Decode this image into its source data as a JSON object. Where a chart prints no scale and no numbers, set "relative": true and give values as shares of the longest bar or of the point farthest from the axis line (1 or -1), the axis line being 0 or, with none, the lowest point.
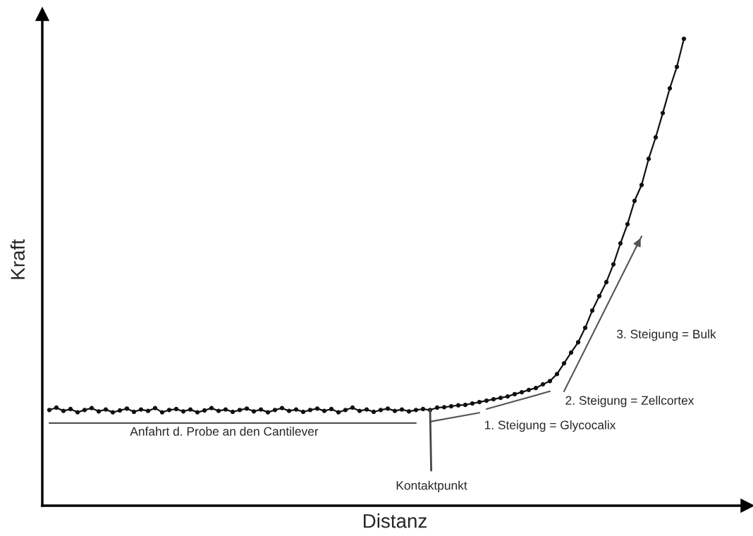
{
  "chart_data": {
    "type": "line",
    "relative": true,
    "xlabel": "Distanz",
    "ylabel": "Kraft",
    "tick_labels": false,
    "legend": false,
    "categories": [
      null,
      null,
      null,
      null,
      null,
      null,
      null,
      null,
      null,
      null,
      null,
      null,
      null,
      null,
      null,
      null,
      null,
      null,
      null,
      null,
      null,
      null,
      null,
      null,
      null,
      null,
      null,
      null,
      null,
      null,
      null,
      null,
      null,
      null,
      null,
      null,
      null,
      null,
      null,
      null,
      null,
      null,
      null,
      null,
      null,
      null,
      null,
      null,
      null,
      null,
      null,
      null,
      null,
      null,
      null,
      null,
      null,
      null,
      null,
      null,
      null,
      null,
      null,
      null,
      null,
      null,
      null,
      null,
      null,
      null,
      null,
      null,
      null,
      null,
      null,
      null,
      null,
      null,
      null,
      null,
      null,
      null,
      null,
      null,
      null,
      null,
      null,
      null,
      null,
      null,
      null
    ],
    "series": [
      {
        "marker": "circle",
        "color": "#111111",
        "values": [
          0.205,
          0.21,
          0.203,
          0.207,
          0.2,
          0.205,
          0.209,
          0.202,
          0.206,
          0.2,
          0.204,
          0.208,
          0.201,
          0.206,
          0.203,
          0.209,
          0.2,
          0.205,
          0.207,
          0.202,
          0.206,
          0.2,
          0.204,
          0.209,
          0.203,
          0.206,
          0.201,
          0.205,
          0.208,
          0.202,
          0.206,
          0.2,
          0.205,
          0.209,
          0.203,
          0.206,
          0.201,
          0.205,
          0.208,
          0.203,
          0.207,
          0.2,
          0.205,
          0.21,
          0.203,
          0.206,
          0.201,
          0.205,
          0.208,
          0.203,
          0.206,
          0.202,
          0.205,
          0.207,
          0.205,
          0.21,
          0.211,
          0.213,
          0.215,
          0.216,
          0.219,
          0.222,
          0.225,
          0.228,
          0.231,
          0.234,
          0.239,
          0.243,
          0.248,
          0.252,
          0.26,
          0.267,
          0.282,
          0.305,
          0.328,
          0.35,
          0.381,
          0.418,
          0.449,
          0.479,
          0.517,
          0.562,
          0.603,
          0.653,
          0.687,
          0.743,
          0.789,
          0.841,
          0.894,
          0.94,
          1.0
        ]
      },
      {
        "marker": "none",
        "color": "#555555",
        "values": [
          0.177,
          null,
          null,
          null,
          null,
          null,
          null,
          null,
          null,
          null,
          null,
          null,
          null,
          null,
          null,
          null,
          null,
          null,
          null,
          null,
          null,
          null,
          null,
          null,
          null,
          null,
          null,
          null,
          null,
          null,
          null,
          null,
          null,
          null,
          null,
          null,
          null,
          null,
          null,
          null,
          null,
          null,
          null,
          null,
          null,
          null,
          null,
          null,
          null,
          null,
          null,
          null,
          0.177,
          null,
          null,
          null,
          null,
          null,
          null,
          null,
          null,
          null,
          null,
          null,
          null,
          null,
          null,
          null,
          null,
          null,
          null,
          null,
          null,
          null,
          null,
          null,
          null,
          null,
          null,
          null,
          null,
          null,
          null,
          null,
          null,
          null,
          null,
          null,
          null,
          null,
          null
        ]
      },
      {
        "marker": "none",
        "color": "#555555",
        "values": [
          null,
          null,
          null,
          null,
          null,
          null,
          null,
          null,
          null,
          null,
          null,
          null,
          null,
          null,
          null,
          null,
          null,
          null,
          null,
          null,
          null,
          null,
          null,
          null,
          null,
          null,
          null,
          null,
          null,
          null,
          null,
          null,
          null,
          null,
          null,
          null,
          null,
          null,
          null,
          null,
          null,
          null,
          null,
          null,
          null,
          null,
          null,
          null,
          null,
          null,
          null,
          null,
          null,
          null,
          0.18,
          null,
          null,
          null,
          null,
          null,
          null,
          0.199,
          null,
          null,
          null,
          null,
          null,
          null,
          null,
          null,
          null,
          null,
          null,
          null,
          null,
          null,
          null,
          null,
          null,
          null,
          null,
          null,
          null,
          null,
          null,
          null,
          null,
          null,
          null,
          null,
          null
        ]
      },
      {
        "marker": "none",
        "color": "#555555",
        "values": [
          null,
          null,
          null,
          null,
          null,
          null,
          null,
          null,
          null,
          null,
          null,
          null,
          null,
          null,
          null,
          null,
          null,
          null,
          null,
          null,
          null,
          null,
          null,
          null,
          null,
          null,
          null,
          null,
          null,
          null,
          null,
          null,
          null,
          null,
          null,
          null,
          null,
          null,
          null,
          null,
          null,
          null,
          null,
          null,
          null,
          null,
          null,
          null,
          null,
          null,
          null,
          null,
          null,
          null,
          null,
          null,
          null,
          null,
          null,
          null,
          null,
          null,
          0.207,
          null,
          null,
          null,
          null,
          null,
          null,
          null,
          null,
          0.245,
          null,
          null,
          null,
          null,
          null,
          null,
          null,
          null,
          null,
          null,
          null,
          null,
          null,
          null,
          null,
          null,
          null,
          null,
          null
        ]
      },
      {
        "marker": "none",
        "color": "#555555",
        "values": [
          null,
          null,
          null,
          null,
          null,
          null,
          null,
          null,
          null,
          null,
          null,
          null,
          null,
          null,
          null,
          null,
          null,
          null,
          null,
          null,
          null,
          null,
          null,
          null,
          null,
          null,
          null,
          null,
          null,
          null,
          null,
          null,
          null,
          null,
          null,
          null,
          null,
          null,
          null,
          null,
          null,
          null,
          null,
          null,
          null,
          null,
          null,
          null,
          null,
          null,
          null,
          null,
          null,
          null,
          null,
          null,
          null,
          null,
          null,
          null,
          null,
          null,
          null,
          null,
          null,
          null,
          null,
          null,
          null,
          null,
          null,
          null,
          null,
          0.245,
          null,
          null,
          null,
          null,
          null,
          null,
          null,
          null,
          null,
          null,
          0.577,
          null,
          null,
          null,
          null,
          null,
          null
        ]
      }
    ],
    "annotations": [
      "Anfahrt d. Probe an den Cantilever",
      "Kontaktpunkt",
      "1. Steigung = Glycocalix",
      "2. Steigung = Zellcortex",
      "3. Steigung = Bulk"
    ]
  }
}
